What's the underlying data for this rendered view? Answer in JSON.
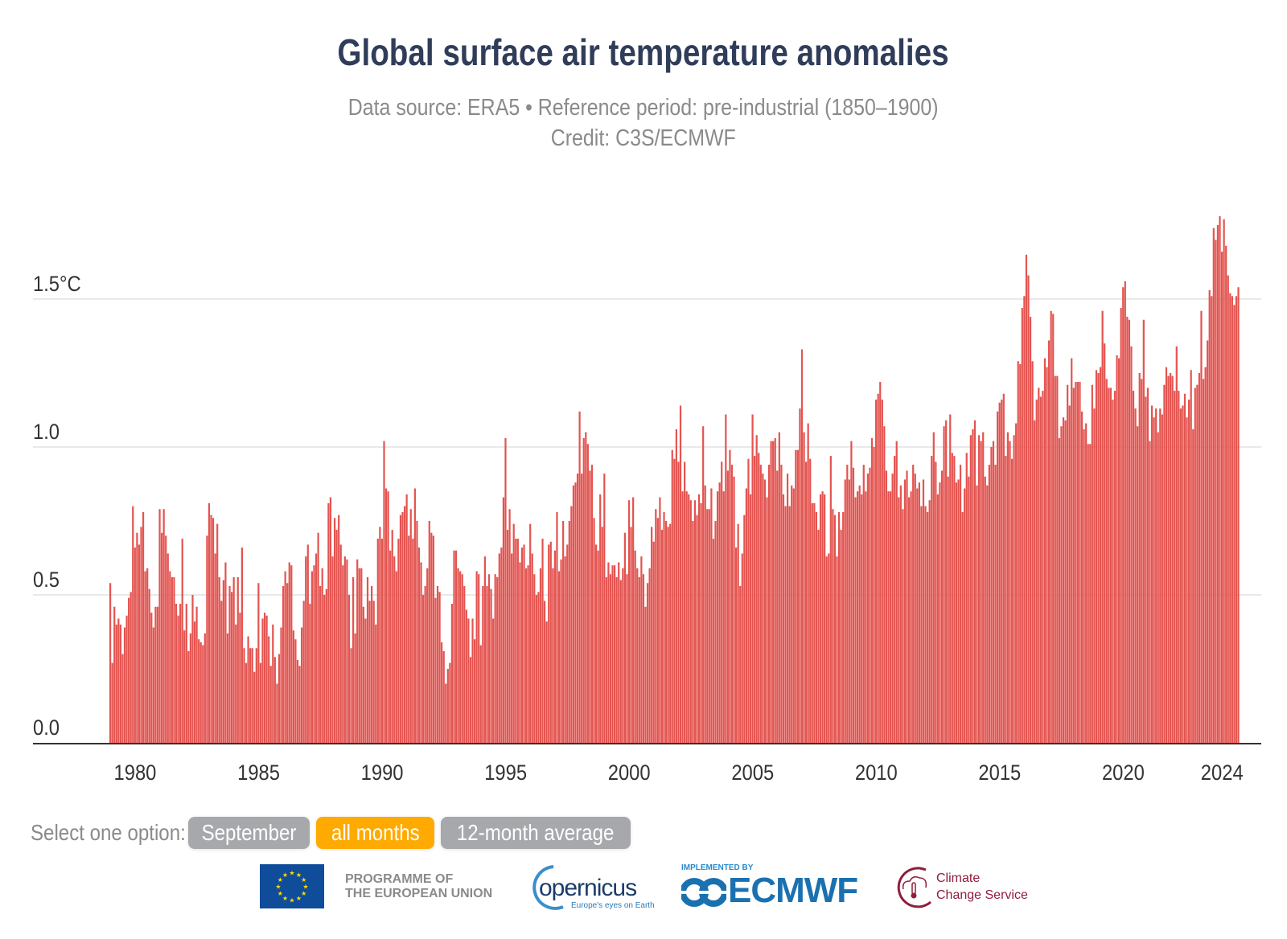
{
  "header": {
    "title": "Global surface air temperature anomalies",
    "subtitle_line1": "Data source: ERA5 • Reference period: pre-industrial (1850–1900)",
    "subtitle_line2": "Credit: C3S/ECMWF"
  },
  "controls": {
    "label": "Select one option:",
    "options": [
      {
        "label": "September",
        "selected": false
      },
      {
        "label": "all months",
        "selected": true
      },
      {
        "label": "12-month average",
        "selected": false
      }
    ],
    "colors": {
      "inactive": "#a7a8ab",
      "active": "#ffaa00"
    }
  },
  "logos": {
    "eu_line1": "PROGRAMME OF",
    "eu_line2": "THE EUROPEAN UNION",
    "copernicus_word": "opernicus",
    "copernicus_tagline": "Europe's eyes on Earth",
    "ecmwf_implemented": "IMPLEMENTED BY",
    "ecmwf_word": "ECMWF",
    "c3s_line1": "Climate",
    "c3s_line2": "Change Service"
  },
  "chart_data": {
    "type": "bar",
    "title": "Global surface air temperature anomalies",
    "xlabel": "",
    "ylabel": "",
    "unit": "°C",
    "bar_color": "#e35450",
    "grid": true,
    "ylim": [
      0,
      1.85
    ],
    "yticks": [
      0.0,
      0.5,
      1.0,
      1.5
    ],
    "ytick_labels": [
      "0.0",
      "0.5",
      "1.0",
      "1.5°C"
    ],
    "xticks": [
      1980,
      1985,
      1990,
      1995,
      2000,
      2005,
      2010,
      2015,
      2020,
      2024
    ],
    "xtick_labels": [
      "1980",
      "1985",
      "1990",
      "1995",
      "2000",
      "2005",
      "2010",
      "2015",
      "2020",
      "2024"
    ],
    "monthly_by_year": [
      {
        "year": 1979,
        "values": [
          0.54,
          0.27,
          0.46,
          0.4,
          0.42,
          0.4,
          0.3,
          0.39,
          0.43,
          0.49,
          0.51,
          0.8
        ]
      },
      {
        "year": 1980,
        "values": [
          0.66,
          0.71,
          0.67,
          0.73,
          0.78,
          0.58,
          0.59,
          0.52,
          0.44,
          0.39,
          0.46,
          0.46
        ]
      },
      {
        "year": 1981,
        "values": [
          0.79,
          0.71,
          0.79,
          0.7,
          0.64,
          0.58,
          0.56,
          0.56,
          0.47,
          0.43,
          0.47,
          0.69
        ]
      },
      {
        "year": 1982,
        "values": [
          0.38,
          0.47,
          0.31,
          0.37,
          0.5,
          0.41,
          0.46,
          0.35,
          0.34,
          0.33,
          0.37,
          0.7
        ]
      },
      {
        "year": 1983,
        "values": [
          0.81,
          0.77,
          0.76,
          0.64,
          0.74,
          0.56,
          0.48,
          0.55,
          0.61,
          0.37,
          0.53,
          0.51
        ]
      },
      {
        "year": 1984,
        "values": [
          0.56,
          0.4,
          0.56,
          0.44,
          0.66,
          0.32,
          0.27,
          0.36,
          0.32,
          0.32,
          0.24,
          0.32
        ]
      },
      {
        "year": 1985,
        "values": [
          0.54,
          0.27,
          0.42,
          0.44,
          0.43,
          0.36,
          0.26,
          0.4,
          0.29,
          0.2,
          0.3,
          0.39
        ]
      },
      {
        "year": 1986,
        "values": [
          0.53,
          0.58,
          0.54,
          0.61,
          0.6,
          0.38,
          0.35,
          0.28,
          0.26,
          0.39,
          0.48,
          0.63
        ]
      },
      {
        "year": 1987,
        "values": [
          0.67,
          0.47,
          0.58,
          0.6,
          0.64,
          0.71,
          0.53,
          0.59,
          0.5,
          0.52,
          0.81,
          0.83
        ]
      },
      {
        "year": 1988,
        "values": [
          0.63,
          0.76,
          0.72,
          0.77,
          0.67,
          0.6,
          0.63,
          0.62,
          0.5,
          0.32,
          0.56,
          0.37
        ]
      },
      {
        "year": 1989,
        "values": [
          0.62,
          0.59,
          0.59,
          0.46,
          0.42,
          0.56,
          0.48,
          0.53,
          0.48,
          0.4,
          0.69,
          0.73
        ]
      },
      {
        "year": 1990,
        "values": [
          0.69,
          1.02,
          0.86,
          0.85,
          0.65,
          0.72,
          0.63,
          0.58,
          0.69,
          0.77,
          0.78,
          0.8
        ]
      },
      {
        "year": 1991,
        "values": [
          0.84,
          0.7,
          0.79,
          0.69,
          0.86,
          0.75,
          0.66,
          0.61,
          0.5,
          0.53,
          0.59,
          0.75
        ]
      },
      {
        "year": 1992,
        "values": [
          0.71,
          0.7,
          0.49,
          0.53,
          0.51,
          0.34,
          0.31,
          0.2,
          0.25,
          0.27,
          0.47,
          0.65
        ]
      },
      {
        "year": 1993,
        "values": [
          0.65,
          0.59,
          0.58,
          0.57,
          0.53,
          0.45,
          0.42,
          0.29,
          0.42,
          0.35,
          0.58,
          0.57
        ]
      },
      {
        "year": 1994,
        "values": [
          0.33,
          0.53,
          0.63,
          0.53,
          0.57,
          0.52,
          0.42,
          0.57,
          0.56,
          0.64,
          0.66,
          0.83
        ]
      },
      {
        "year": 1995,
        "values": [
          1.03,
          0.72,
          0.79,
          0.64,
          0.74,
          0.69,
          0.69,
          0.61,
          0.66,
          0.67,
          0.59,
          0.6
        ]
      },
      {
        "year": 1996,
        "values": [
          0.74,
          0.64,
          0.57,
          0.5,
          0.51,
          0.59,
          0.69,
          0.48,
          0.41,
          0.67,
          0.68,
          0.59
        ]
      },
      {
        "year": 1997,
        "values": [
          0.65,
          0.78,
          0.58,
          0.62,
          0.75,
          0.63,
          0.67,
          0.75,
          0.8,
          0.87,
          0.88,
          0.91
        ]
      },
      {
        "year": 1998,
        "values": [
          1.12,
          0.91,
          1.03,
          1.05,
          1.01,
          0.92,
          0.94,
          0.76,
          0.67,
          0.65,
          0.84,
          0.73
        ]
      },
      {
        "year": 1999,
        "values": [
          0.91,
          0.56,
          0.61,
          0.57,
          0.6,
          0.6,
          0.56,
          0.61,
          0.55,
          0.59,
          0.71,
          0.57
        ]
      },
      {
        "year": 2000,
        "values": [
          0.82,
          0.73,
          0.83,
          0.65,
          0.59,
          0.56,
          0.63,
          0.57,
          0.46,
          0.54,
          0.59,
          0.73
        ]
      },
      {
        "year": 2001,
        "values": [
          0.68,
          0.79,
          0.76,
          0.83,
          0.72,
          0.78,
          0.75,
          0.73,
          0.74,
          0.99,
          0.96,
          1.06
        ]
      },
      {
        "year": 2002,
        "values": [
          0.95,
          1.14,
          0.85,
          0.95,
          0.85,
          0.84,
          0.82,
          0.75,
          0.82,
          0.77,
          0.84,
          0.81
        ]
      },
      {
        "year": 2003,
        "values": [
          1.07,
          0.87,
          0.79,
          0.79,
          0.86,
          0.69,
          0.75,
          0.85,
          0.88,
          0.95,
          0.85,
          1.11
        ]
      },
      {
        "year": 2004,
        "values": [
          0.92,
          0.99,
          0.94,
          0.9,
          0.66,
          0.74,
          0.53,
          0.64,
          0.77,
          0.86,
          0.96,
          0.84
        ]
      },
      {
        "year": 2005,
        "values": [
          1.11,
          0.97,
          1.04,
          0.98,
          0.94,
          0.91,
          0.89,
          0.83,
          0.94,
          1.02,
          1.02,
          1.03
        ]
      },
      {
        "year": 2006,
        "values": [
          0.92,
          1.05,
          0.94,
          0.84,
          0.8,
          0.91,
          0.8,
          0.87,
          0.86,
          0.99,
          0.99,
          1.13
        ]
      },
      {
        "year": 2007,
        "values": [
          1.33,
          1.05,
          0.95,
          1.08,
          0.96,
          0.81,
          0.81,
          0.78,
          0.72,
          0.84,
          0.85,
          0.84
        ]
      },
      {
        "year": 2008,
        "values": [
          0.63,
          0.64,
          0.97,
          0.79,
          0.77,
          0.63,
          0.78,
          0.72,
          0.78,
          0.89,
          0.94,
          0.89
        ]
      },
      {
        "year": 2009,
        "values": [
          1.02,
          0.93,
          0.83,
          0.85,
          0.87,
          0.84,
          0.94,
          0.85,
          0.91,
          0.93,
          1.03,
          1.0
        ]
      },
      {
        "year": 2010,
        "values": [
          1.16,
          1.18,
          1.22,
          1.16,
          1.07,
          0.92,
          0.85,
          0.85,
          0.91,
          0.97,
          1.02,
          0.83
        ]
      },
      {
        "year": 2011,
        "values": [
          0.87,
          0.79,
          0.89,
          0.92,
          0.83,
          0.85,
          0.94,
          0.91,
          0.86,
          0.88,
          0.8,
          0.89
        ]
      },
      {
        "year": 2012,
        "values": [
          0.8,
          0.78,
          0.82,
          0.97,
          1.05,
          0.95,
          0.84,
          0.88,
          0.92,
          1.07,
          1.09,
          0.9
        ]
      },
      {
        "year": 2013,
        "values": [
          1.11,
          0.98,
          0.97,
          0.88,
          0.89,
          0.94,
          0.78,
          0.86,
          0.98,
          0.9,
          1.04,
          1.06
        ]
      },
      {
        "year": 2014,
        "values": [
          1.09,
          0.87,
          1.04,
          1.02,
          1.05,
          0.9,
          0.87,
          0.94,
          1.0,
          1.02,
          0.94,
          1.12
        ]
      },
      {
        "year": 2015,
        "values": [
          1.15,
          1.16,
          1.18,
          0.97,
          1.05,
          1.02,
          0.96,
          1.04,
          1.08,
          1.29,
          1.28,
          1.47
        ]
      },
      {
        "year": 2016,
        "values": [
          1.51,
          1.65,
          1.58,
          1.44,
          1.29,
          1.09,
          1.16,
          1.2,
          1.17,
          1.19,
          1.3,
          1.27
        ]
      },
      {
        "year": 2017,
        "values": [
          1.36,
          1.46,
          1.45,
          1.24,
          1.24,
          1.03,
          1.07,
          1.1,
          1.09,
          1.21,
          1.14,
          1.3
        ]
      },
      {
        "year": 2018,
        "values": [
          1.2,
          1.22,
          1.22,
          1.22,
          1.12,
          1.06,
          1.08,
          1.01,
          1.01,
          1.21,
          1.13,
          1.26
        ]
      },
      {
        "year": 2019,
        "values": [
          1.25,
          1.27,
          1.46,
          1.35,
          1.23,
          1.2,
          1.2,
          1.16,
          1.19,
          1.31,
          1.3,
          1.47
        ]
      },
      {
        "year": 2020,
        "values": [
          1.54,
          1.56,
          1.44,
          1.43,
          1.34,
          1.19,
          1.13,
          1.07,
          1.25,
          1.23,
          1.43,
          1.17
        ]
      },
      {
        "year": 2021,
        "values": [
          1.2,
          1.02,
          1.14,
          1.1,
          1.13,
          1.05,
          1.13,
          1.11,
          1.21,
          1.27,
          1.24,
          1.25
        ]
      },
      {
        "year": 2022,
        "values": [
          1.24,
          1.19,
          1.34,
          1.19,
          1.13,
          1.14,
          1.18,
          1.1,
          1.16,
          1.26,
          1.06,
          1.2
        ]
      },
      {
        "year": 2023,
        "values": [
          1.21,
          1.25,
          1.46,
          1.23,
          1.27,
          1.36,
          1.53,
          1.51,
          1.74,
          1.7,
          1.75,
          1.78
        ]
      },
      {
        "year": 2024,
        "values": [
          1.66,
          1.77,
          1.68,
          1.58,
          1.52,
          1.51,
          1.48,
          1.51,
          1.54
        ]
      }
    ]
  }
}
